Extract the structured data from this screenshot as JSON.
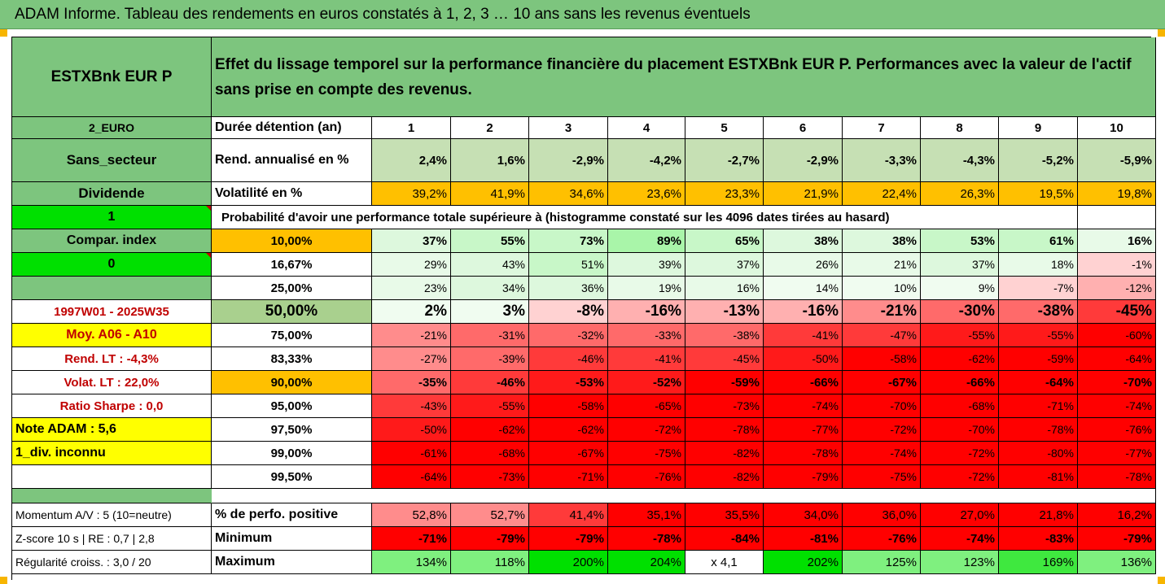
{
  "title": "ADAM Informe. Tableau des rendements en euros constatés à 1, 2, 3 … 10 ans sans les revenus éventuels",
  "header": {
    "fund": "ESTXBnk EUR P",
    "description": "Effet du lissage temporel sur la performance financière du placement ESTXBnk EUR P. Performances avec la valeur de l'actif sans prise en compte des revenus."
  },
  "left_labels": {
    "currency": "2_EURO",
    "sector": "Sans_secteur",
    "dividend": "Dividende",
    "one": "1",
    "compar": "Compar. index",
    "zero": "0",
    "blank": "",
    "period": "1997W01 - 2025W35",
    "moy": "Moy. A06 - A10",
    "rend_lt": "Rend. LT :   -4,3%",
    "volat_lt": "Volat. LT :   22,0%",
    "sharpe": "Ratio Sharpe :   0,0",
    "note": "Note ADAM : 5,6",
    "div_inconnu": "1_div. inconnu",
    "momentum": "Momentum A/V : 5 (10=neutre)",
    "zscore": "Z-score 10 s  | RE : 0,7 | 2,8",
    "regularite": "Régularité croiss. : 3,0 / 20"
  },
  "row_labels": {
    "duree": "Durée détention (an)",
    "rend": "Rend. annualisé en %",
    "vol": "Volatilité en %",
    "proba": "Probabilité d'avoir une performance totale supérieure à (histogramme constaté sur les 4096 dates tirées au hasard)",
    "positive": "% de perfo. positive",
    "minimum": "Minimum",
    "maximum": "Maximum"
  },
  "years": [
    "1",
    "2",
    "3",
    "4",
    "5",
    "6",
    "7",
    "8",
    "9",
    "10"
  ],
  "rend_annualise": [
    "2,4%",
    "1,6%",
    "-2,9%",
    "-4,2%",
    "-2,7%",
    "-2,9%",
    "-3,3%",
    "-4,3%",
    "-5,2%",
    "-5,9%"
  ],
  "volatilite": [
    "39,2%",
    "41,9%",
    "34,6%",
    "23,6%",
    "23,3%",
    "21,9%",
    "22,4%",
    "26,3%",
    "19,5%",
    "19,8%"
  ],
  "percentile_rows": [
    {
      "p": "10,00%",
      "values": [
        "37%",
        "55%",
        "73%",
        "89%",
        "65%",
        "38%",
        "38%",
        "53%",
        "61%",
        "16%"
      ]
    },
    {
      "p": "16,67%",
      "values": [
        "29%",
        "43%",
        "51%",
        "39%",
        "37%",
        "26%",
        "21%",
        "37%",
        "18%",
        "-1%"
      ]
    },
    {
      "p": "25,00%",
      "values": [
        "23%",
        "34%",
        "36%",
        "19%",
        "16%",
        "14%",
        "10%",
        "9%",
        "-7%",
        "-12%"
      ]
    },
    {
      "p": "50,00%",
      "values": [
        "2%",
        "3%",
        "-8%",
        "-16%",
        "-13%",
        "-16%",
        "-21%",
        "-30%",
        "-38%",
        "-45%"
      ]
    },
    {
      "p": "75,00%",
      "values": [
        "-21%",
        "-31%",
        "-32%",
        "-33%",
        "-38%",
        "-41%",
        "-47%",
        "-55%",
        "-55%",
        "-60%"
      ]
    },
    {
      "p": "83,33%",
      "values": [
        "-27%",
        "-39%",
        "-46%",
        "-41%",
        "-45%",
        "-50%",
        "-58%",
        "-62%",
        "-59%",
        "-64%"
      ]
    },
    {
      "p": "90,00%",
      "values": [
        "-35%",
        "-46%",
        "-53%",
        "-52%",
        "-59%",
        "-66%",
        "-67%",
        "-66%",
        "-64%",
        "-70%"
      ]
    },
    {
      "p": "95,00%",
      "values": [
        "-43%",
        "-55%",
        "-58%",
        "-65%",
        "-73%",
        "-74%",
        "-70%",
        "-68%",
        "-71%",
        "-74%"
      ]
    },
    {
      "p": "97,50%",
      "values": [
        "-50%",
        "-62%",
        "-62%",
        "-72%",
        "-78%",
        "-77%",
        "-72%",
        "-70%",
        "-78%",
        "-76%"
      ]
    },
    {
      "p": "99,00%",
      "values": [
        "-61%",
        "-68%",
        "-67%",
        "-75%",
        "-82%",
        "-78%",
        "-74%",
        "-72%",
        "-80%",
        "-77%"
      ]
    },
    {
      "p": "99,50%",
      "values": [
        "-64%",
        "-73%",
        "-71%",
        "-76%",
        "-82%",
        "-79%",
        "-75%",
        "-72%",
        "-81%",
        "-78%"
      ]
    }
  ],
  "perfo_positive": [
    "52,8%",
    "52,7%",
    "41,4%",
    "35,1%",
    "35,5%",
    "34,0%",
    "36,0%",
    "27,0%",
    "21,8%",
    "16,2%"
  ],
  "minimum": [
    "-71%",
    "-79%",
    "-79%",
    "-78%",
    "-84%",
    "-81%",
    "-76%",
    "-74%",
    "-83%",
    "-79%"
  ],
  "maximum": [
    "134%",
    "118%",
    "200%",
    "204%",
    "x 4,1",
    "202%",
    "125%",
    "123%",
    "169%",
    "136%"
  ],
  "colors": {
    "header_green": "#7DC57E",
    "bright_green": "#00E000",
    "orange": "#FFC000",
    "yellow": "#FFFF00",
    "red": "#FF0000",
    "label_red": "#C00000"
  }
}
